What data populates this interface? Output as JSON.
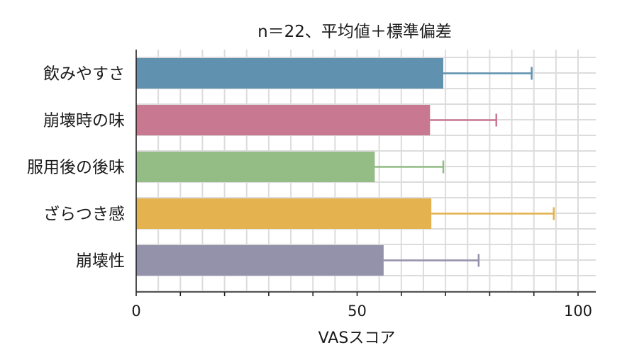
{
  "chart_data": {
    "type": "bar",
    "orientation": "horizontal",
    "title": "n＝22、平均値＋標準偏差",
    "xlabel": "VASスコア",
    "ylabel": "",
    "xlim": [
      0,
      104
    ],
    "xticks": [
      0,
      50,
      100
    ],
    "grid": true,
    "categories": [
      "飲みやすさ",
      "崩壊時の味",
      "服用後の後味",
      "ざらつき感",
      "崩壊性"
    ],
    "values": [
      69.5,
      66.5,
      54,
      66.8,
      56
    ],
    "error_upper": [
      89.5,
      81.5,
      69.5,
      94.5,
      77.5
    ],
    "colors": [
      "#6092b0",
      "#c87891",
      "#93bd85",
      "#e4b24e",
      "#9491ab"
    ]
  }
}
